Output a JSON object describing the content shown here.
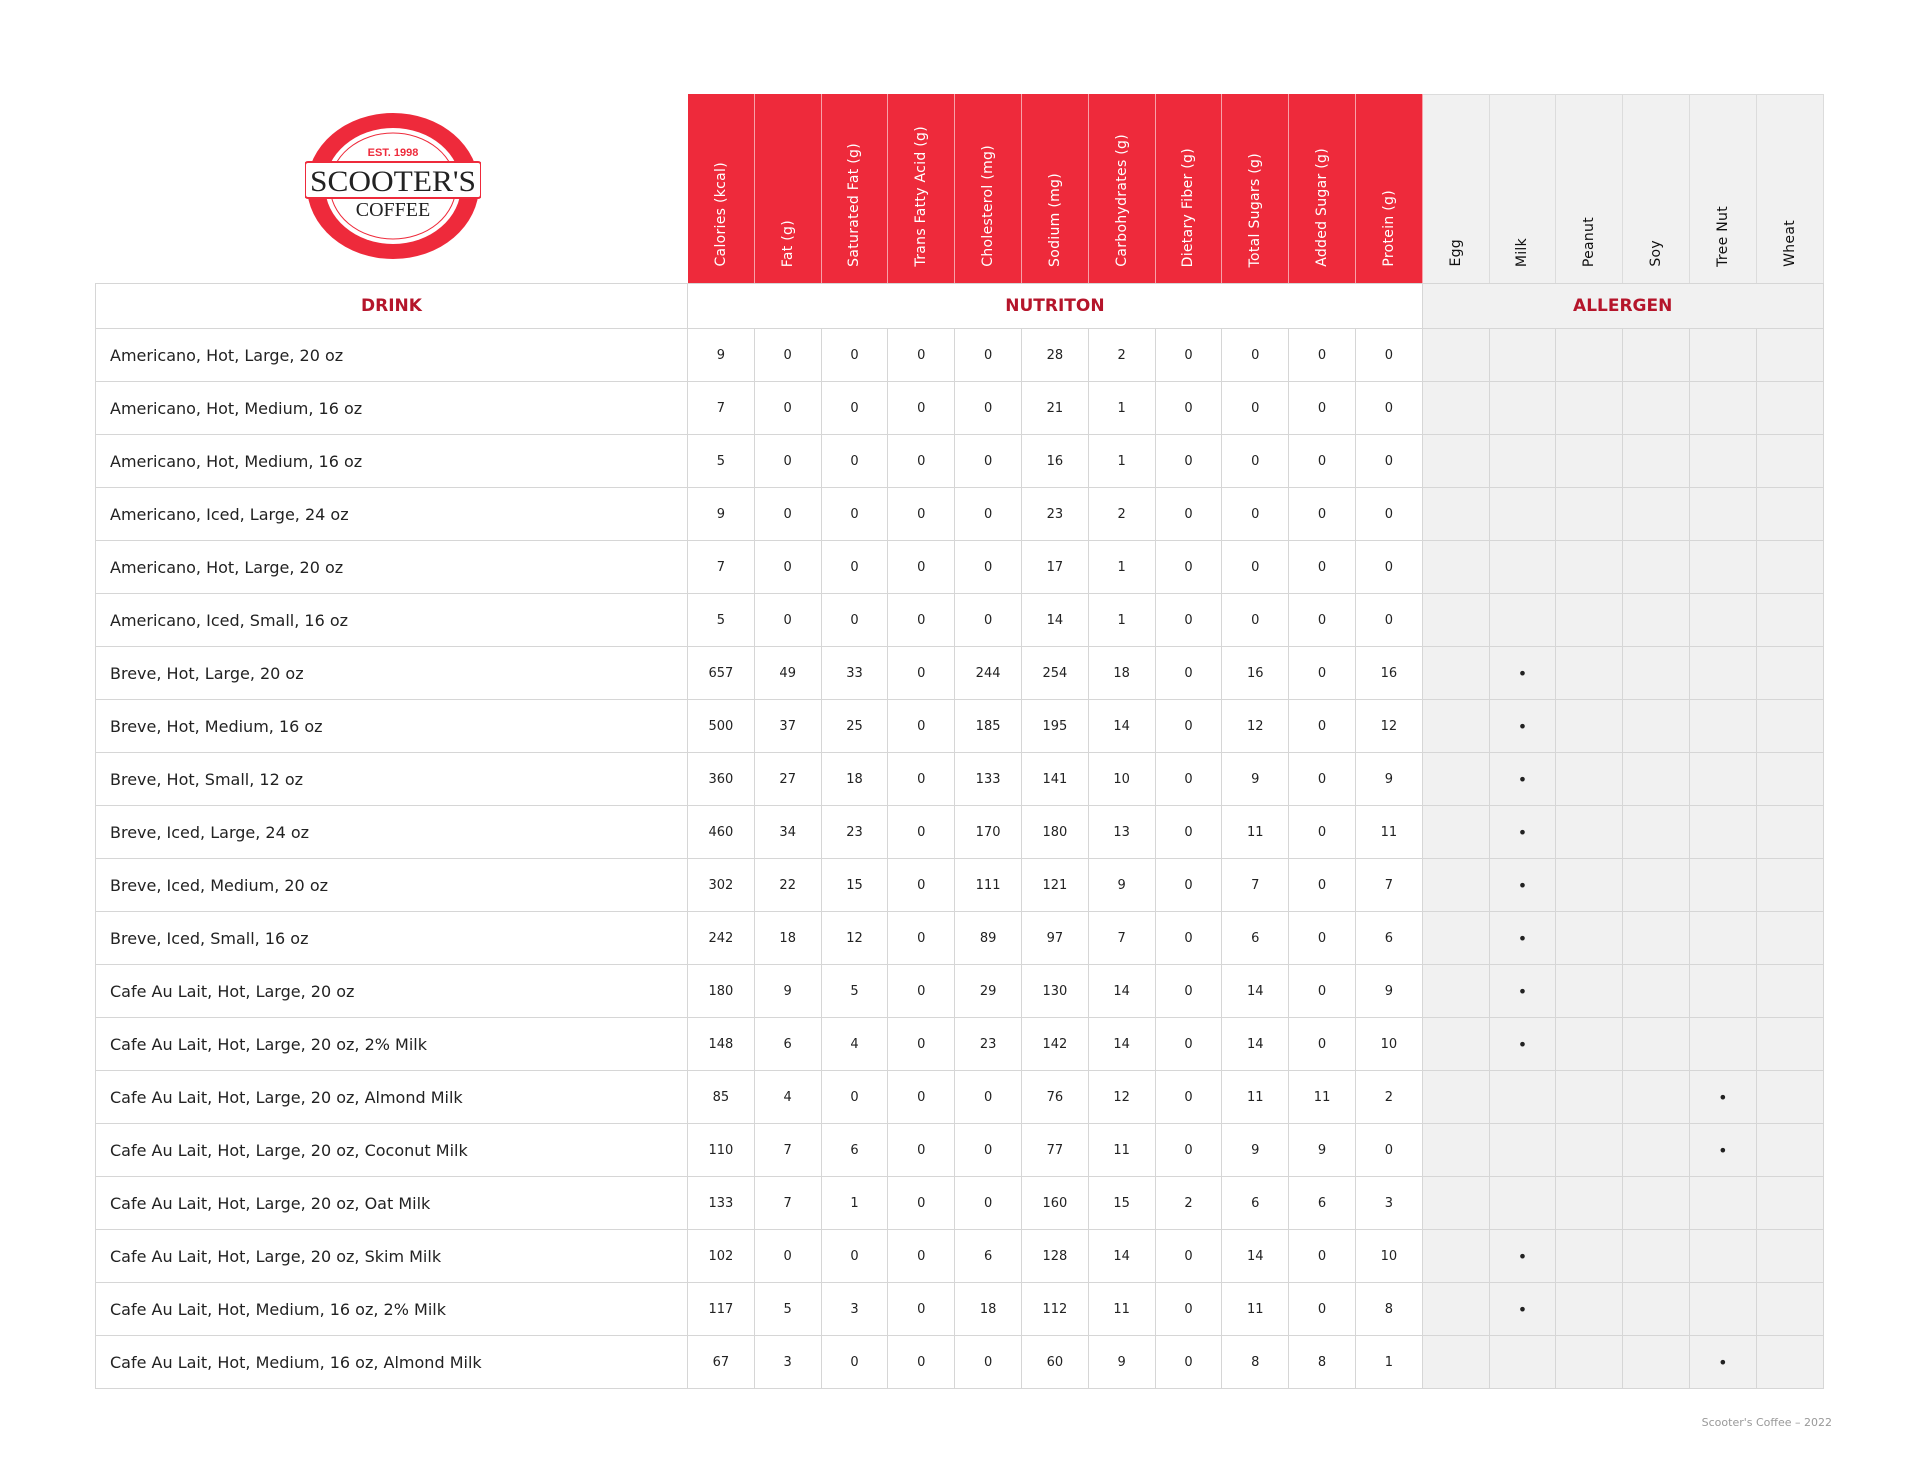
{
  "brand": {
    "name": "SCOOTER'S",
    "sub": "COFFEE",
    "est": "EST. 1998",
    "colors": {
      "red": "#ee2a3b",
      "dark_red": "#b5152b",
      "allergen_bg": "#f1f1f1"
    }
  },
  "sections": {
    "drink": "DRINK",
    "nutrition": "NUTRITON",
    "allergen": "ALLERGEN"
  },
  "nutrition_columns": [
    "Calories (kcal)",
    "Fat (g)",
    "Saturated Fat (g)",
    "Trans Fatty Acid (g)",
    "Cholesterol (mg)",
    "Sodium (mg)",
    "Carbohydrates (g)",
    "Dietary Fiber (g)",
    "Total Sugars (g)",
    "Added Sugar (g)",
    "Protein (g)"
  ],
  "allergen_columns": [
    "Egg",
    "Milk",
    "Peanut",
    "Soy",
    "Tree Nut",
    "Wheat"
  ],
  "allergen_mark": "•",
  "rows": [
    {
      "drink": "Americano, Hot, Large, 20 oz",
      "n": [
        9,
        0,
        0,
        0,
        0,
        28,
        2,
        0,
        0,
        0,
        0
      ],
      "a": []
    },
    {
      "drink": "Americano, Hot, Medium, 16 oz",
      "n": [
        7,
        0,
        0,
        0,
        0,
        21,
        1,
        0,
        0,
        0,
        0
      ],
      "a": []
    },
    {
      "drink": "Americano, Hot, Medium, 16 oz",
      "n": [
        5,
        0,
        0,
        0,
        0,
        16,
        1,
        0,
        0,
        0,
        0
      ],
      "a": []
    },
    {
      "drink": "Americano, Iced, Large, 24 oz",
      "n": [
        9,
        0,
        0,
        0,
        0,
        23,
        2,
        0,
        0,
        0,
        0
      ],
      "a": []
    },
    {
      "drink": "Americano, Hot, Large, 20 oz",
      "n": [
        7,
        0,
        0,
        0,
        0,
        17,
        1,
        0,
        0,
        0,
        0
      ],
      "a": []
    },
    {
      "drink": "Americano, Iced, Small, 16 oz",
      "n": [
        5,
        0,
        0,
        0,
        0,
        14,
        1,
        0,
        0,
        0,
        0
      ],
      "a": []
    },
    {
      "drink": "Breve, Hot, Large, 20 oz",
      "n": [
        657,
        49,
        33,
        0,
        244,
        254,
        18,
        0,
        16,
        0,
        16
      ],
      "a": [
        "Milk"
      ]
    },
    {
      "drink": "Breve, Hot, Medium, 16 oz",
      "n": [
        500,
        37,
        25,
        0,
        185,
        195,
        14,
        0,
        12,
        0,
        12
      ],
      "a": [
        "Milk"
      ]
    },
    {
      "drink": "Breve, Hot, Small, 12 oz",
      "n": [
        360,
        27,
        18,
        0,
        133,
        141,
        10,
        0,
        9,
        0,
        9
      ],
      "a": [
        "Milk"
      ]
    },
    {
      "drink": "Breve, Iced, Large, 24 oz",
      "n": [
        460,
        34,
        23,
        0,
        170,
        180,
        13,
        0,
        11,
        0,
        11
      ],
      "a": [
        "Milk"
      ]
    },
    {
      "drink": "Breve, Iced, Medium, 20 oz",
      "n": [
        302,
        22,
        15,
        0,
        111,
        121,
        9,
        0,
        7,
        0,
        7
      ],
      "a": [
        "Milk"
      ]
    },
    {
      "drink": "Breve, Iced, Small, 16 oz",
      "n": [
        242,
        18,
        12,
        0,
        89,
        97,
        7,
        0,
        6,
        0,
        6
      ],
      "a": [
        "Milk"
      ]
    },
    {
      "drink": "Cafe Au Lait, Hot, Large, 20 oz",
      "n": [
        180,
        9,
        5,
        0,
        29,
        130,
        14,
        0,
        14,
        0,
        9
      ],
      "a": [
        "Milk"
      ]
    },
    {
      "drink": "Cafe Au Lait, Hot, Large, 20 oz, 2% Milk",
      "n": [
        148,
        6,
        4,
        0,
        23,
        142,
        14,
        0,
        14,
        0,
        10
      ],
      "a": [
        "Milk"
      ]
    },
    {
      "drink": "Cafe Au Lait, Hot, Large, 20 oz, Almond Milk",
      "n": [
        85,
        4,
        0,
        0,
        0,
        76,
        12,
        0,
        11,
        11,
        2
      ],
      "a": [
        "Tree Nut"
      ]
    },
    {
      "drink": "Cafe Au Lait, Hot, Large, 20 oz, Coconut Milk",
      "n": [
        110,
        7,
        6,
        0,
        0,
        77,
        11,
        0,
        9,
        9,
        0
      ],
      "a": [
        "Tree Nut"
      ]
    },
    {
      "drink": "Cafe Au Lait, Hot, Large, 20 oz, Oat Milk",
      "n": [
        133,
        7,
        1,
        0,
        0,
        160,
        15,
        2,
        6,
        6,
        3
      ],
      "a": []
    },
    {
      "drink": "Cafe Au Lait, Hot, Large, 20 oz, Skim Milk",
      "n": [
        102,
        0,
        0,
        0,
        6,
        128,
        14,
        0,
        14,
        0,
        10
      ],
      "a": [
        "Milk"
      ]
    },
    {
      "drink": "Cafe Au Lait, Hot, Medium, 16 oz, 2% Milk",
      "n": [
        117,
        5,
        3,
        0,
        18,
        112,
        11,
        0,
        11,
        0,
        8
      ],
      "a": [
        "Milk"
      ]
    },
    {
      "drink": "Cafe Au Lait, Hot, Medium, 16 oz, Almond Milk",
      "n": [
        67,
        3,
        0,
        0,
        0,
        60,
        9,
        0,
        8,
        8,
        1
      ],
      "a": [
        "Tree Nut"
      ]
    }
  ],
  "footer": "Scooter's Coffee – 2022"
}
